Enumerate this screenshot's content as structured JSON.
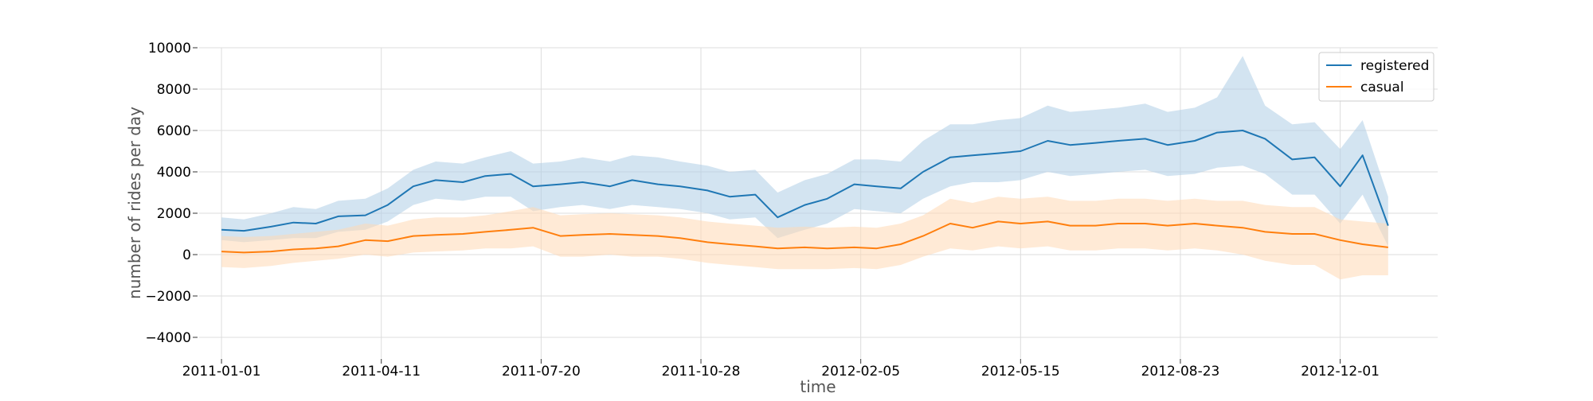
{
  "chart_data": {
    "type": "line",
    "title": "",
    "xlabel": "time",
    "ylabel": "number of rides per day",
    "xlim": [
      "2010-12-18",
      "2013-01-31"
    ],
    "ylim": [
      -5000,
      10000
    ],
    "yticks": [
      -4000,
      -2000,
      0,
      2000,
      4000,
      6000,
      8000,
      10000
    ],
    "xticks": [
      "2011-01-01",
      "2011-04-11",
      "2011-07-20",
      "2011-10-28",
      "2012-02-05",
      "2012-05-15",
      "2012-08-23",
      "2012-12-01"
    ],
    "grid": true,
    "legend": "top-right",
    "series": [
      {
        "name": "registered",
        "color": "#1f77b4",
        "band_color": "#aecde6",
        "x": [
          "2011-01-01",
          "2011-01-15",
          "2011-02-01",
          "2011-02-15",
          "2011-03-01",
          "2011-03-15",
          "2011-04-01",
          "2011-04-15",
          "2011-05-01",
          "2011-05-15",
          "2011-06-01",
          "2011-06-15",
          "2011-07-01",
          "2011-07-15",
          "2011-08-01",
          "2011-08-15",
          "2011-09-01",
          "2011-09-15",
          "2011-10-01",
          "2011-10-15",
          "2011-11-01",
          "2011-11-15",
          "2011-12-01",
          "2011-12-15",
          "2012-01-01",
          "2012-01-15",
          "2012-02-01",
          "2012-02-15",
          "2012-03-01",
          "2012-03-15",
          "2012-04-01",
          "2012-04-15",
          "2012-05-01",
          "2012-05-15",
          "2012-06-01",
          "2012-06-15",
          "2012-07-01",
          "2012-07-15",
          "2012-08-01",
          "2012-08-15",
          "2012-09-01",
          "2012-09-15",
          "2012-10-01",
          "2012-10-15",
          "2012-11-01",
          "2012-11-15",
          "2012-12-01",
          "2012-12-15",
          "2012-12-31"
        ],
        "values": [
          1200,
          1150,
          1350,
          1550,
          1500,
          1850,
          1900,
          2400,
          3300,
          3600,
          3500,
          3800,
          3900,
          3300,
          3400,
          3500,
          3300,
          3600,
          3400,
          3300,
          3100,
          2800,
          2900,
          1800,
          2400,
          2700,
          3400,
          3300,
          3200,
          4000,
          4700,
          4800,
          4900,
          5000,
          5500,
          5300,
          5400,
          5500,
          5600,
          5300,
          5500,
          5900,
          6000,
          5600,
          4600,
          4700,
          3300,
          4800,
          1400
        ],
        "lower": [
          700,
          600,
          700,
          800,
          800,
          1100,
          1200,
          1600,
          2400,
          2700,
          2600,
          2800,
          2800,
          2100,
          2300,
          2400,
          2200,
          2400,
          2300,
          2200,
          2000,
          1700,
          1800,
          800,
          1200,
          1500,
          2200,
          2100,
          2000,
          2700,
          3300,
          3500,
          3500,
          3600,
          4000,
          3800,
          3900,
          4000,
          4100,
          3800,
          3900,
          4200,
          4300,
          3900,
          2900,
          2900,
          1500,
          2900,
          400
        ],
        "upper": [
          1800,
          1700,
          2000,
          2300,
          2200,
          2600,
          2700,
          3200,
          4100,
          4500,
          4400,
          4700,
          5000,
          4400,
          4500,
          4700,
          4500,
          4800,
          4700,
          4500,
          4300,
          4000,
          4100,
          3000,
          3600,
          3900,
          4600,
          4600,
          4500,
          5500,
          6300,
          6300,
          6500,
          6600,
          7200,
          6900,
          7000,
          7100,
          7300,
          6900,
          7100,
          7600,
          9600,
          7200,
          6300,
          6400,
          5100,
          6500,
          2800
        ]
      },
      {
        "name": "casual",
        "color": "#ff7f0e",
        "band_color": "#ffd8b5",
        "x": [
          "2011-01-01",
          "2011-01-15",
          "2011-02-01",
          "2011-02-15",
          "2011-03-01",
          "2011-03-15",
          "2011-04-01",
          "2011-04-15",
          "2011-05-01",
          "2011-05-15",
          "2011-06-01",
          "2011-06-15",
          "2011-07-01",
          "2011-07-15",
          "2011-08-01",
          "2011-08-15",
          "2011-09-01",
          "2011-09-15",
          "2011-10-01",
          "2011-10-15",
          "2011-11-01",
          "2011-11-15",
          "2011-12-01",
          "2011-12-15",
          "2012-01-01",
          "2012-01-15",
          "2012-02-01",
          "2012-02-15",
          "2012-03-01",
          "2012-03-15",
          "2012-04-01",
          "2012-04-15",
          "2012-05-01",
          "2012-05-15",
          "2012-06-01",
          "2012-06-15",
          "2012-07-01",
          "2012-07-15",
          "2012-08-01",
          "2012-08-15",
          "2012-09-01",
          "2012-09-15",
          "2012-10-01",
          "2012-10-15",
          "2012-11-01",
          "2012-11-15",
          "2012-12-01",
          "2012-12-15",
          "2012-12-31"
        ],
        "values": [
          150,
          100,
          150,
          250,
          300,
          400,
          700,
          650,
          900,
          950,
          1000,
          1100,
          1200,
          1300,
          900,
          950,
          1000,
          950,
          900,
          800,
          600,
          500,
          400,
          300,
          350,
          300,
          350,
          300,
          500,
          900,
          1500,
          1300,
          1600,
          1500,
          1600,
          1400,
          1400,
          1500,
          1500,
          1400,
          1500,
          1400,
          1300,
          1100,
          1000,
          1000,
          700,
          500,
          350
        ],
        "lower": [
          -600,
          -650,
          -550,
          -400,
          -300,
          -200,
          0,
          -100,
          100,
          150,
          200,
          300,
          300,
          400,
          -100,
          -100,
          0,
          -100,
          -100,
          -200,
          -400,
          -500,
          -600,
          -700,
          -700,
          -700,
          -650,
          -700,
          -500,
          -100,
          300,
          200,
          400,
          300,
          400,
          200,
          200,
          300,
          300,
          200,
          300,
          200,
          0,
          -300,
          -500,
          -500,
          -1200,
          -1000,
          -1000
        ],
        "upper": [
          900,
          850,
          900,
          1000,
          1100,
          1200,
          1500,
          1400,
          1700,
          1800,
          1800,
          1900,
          2100,
          2300,
          1900,
          1950,
          2000,
          1950,
          1900,
          1800,
          1600,
          1500,
          1400,
          1300,
          1350,
          1300,
          1350,
          1300,
          1500,
          1900,
          2700,
          2500,
          2800,
          2700,
          2800,
          2600,
          2600,
          2700,
          2700,
          2600,
          2700,
          2600,
          2600,
          2400,
          2300,
          2300,
          1700,
          1600,
          1500
        ]
      }
    ]
  }
}
